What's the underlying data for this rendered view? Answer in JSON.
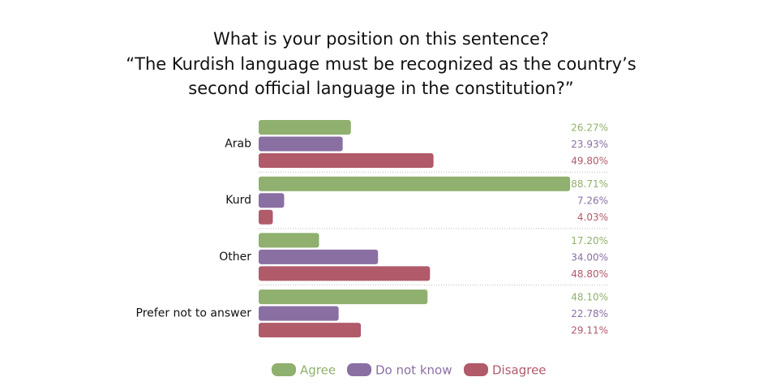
{
  "chart_data": {
    "type": "bar",
    "orientation": "horizontal",
    "title": [
      "What is your position on this sentence?",
      "“The Kurdish language must be recognized as the country’s",
      "second official language in the constitution?”"
    ],
    "categories": [
      "Arab",
      "Kurd",
      "Other",
      "Prefer not to answer"
    ],
    "series": [
      {
        "name": "Agree",
        "color": "#8fb06e",
        "values": [
          26.27,
          88.71,
          17.2,
          48.1
        ],
        "value_labels": [
          "26.27%",
          "88.71%",
          "17.20%",
          "48.10%"
        ]
      },
      {
        "name": "Do not know",
        "color": "#8a6fa3",
        "values": [
          23.93,
          7.26,
          34.0,
          22.78
        ],
        "value_labels": [
          "23.93%",
          "7.26%",
          "34.00%",
          "22.78%"
        ]
      },
      {
        "name": "Disagree",
        "color": "#b05a6a",
        "values": [
          49.8,
          4.03,
          48.8,
          29.11
        ],
        "value_labels": [
          "49.80%",
          "4.03%",
          "48.80%",
          "29.11%"
        ]
      }
    ],
    "legend": "bottom"
  }
}
